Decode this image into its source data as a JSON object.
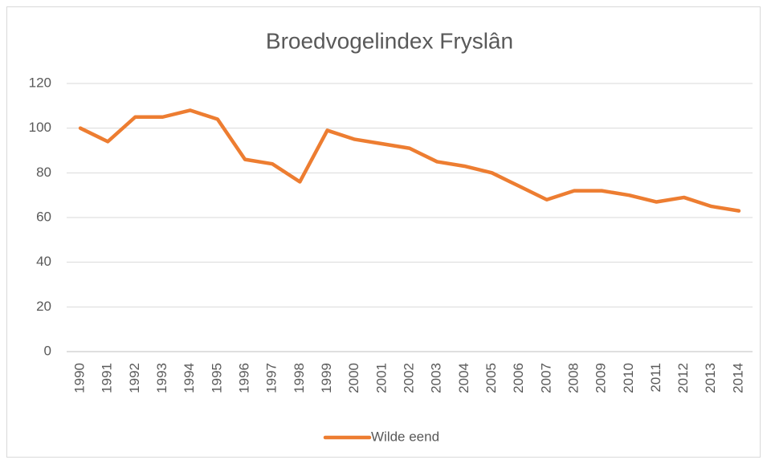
{
  "chart_data": {
    "type": "line",
    "title": "Broedvogelindex Fryslân",
    "categories": [
      "1990",
      "1991",
      "1992",
      "1993",
      "1994",
      "1995",
      "1996",
      "1997",
      "1998",
      "1999",
      "2000",
      "2001",
      "2002",
      "2003",
      "2004",
      "2005",
      "2006",
      "2007",
      "2008",
      "2009",
      "2010",
      "2011",
      "2012",
      "2013",
      "2014"
    ],
    "series": [
      {
        "name": "Wilde eend",
        "color": "#ED7D31",
        "values": [
          100,
          94,
          105,
          105,
          108,
          104,
          86,
          84,
          76,
          99,
          95,
          93,
          91,
          85,
          83,
          80,
          74,
          68,
          72,
          72,
          70,
          67,
          69,
          65,
          63
        ]
      }
    ],
    "ylim": [
      0,
      120
    ],
    "yticks": [
      0,
      20,
      40,
      60,
      80,
      100,
      120
    ],
    "grid": true,
    "legend": "bottom"
  }
}
